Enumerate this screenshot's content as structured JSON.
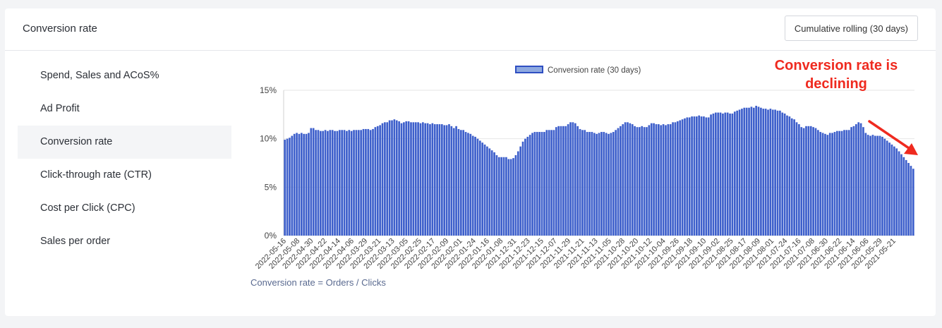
{
  "header": {
    "title": "Conversion rate",
    "rolling_button": "Cumulative rolling (30 days)"
  },
  "sidebar": {
    "items": [
      {
        "label": "Spend, Sales and ACoS%",
        "active": false
      },
      {
        "label": "Ad Profit",
        "active": false
      },
      {
        "label": "Conversion rate",
        "active": true
      },
      {
        "label": "Click-through rate (CTR)",
        "active": false
      },
      {
        "label": "Cost per Click (CPC)",
        "active": false
      },
      {
        "label": "Sales per order",
        "active": false
      }
    ]
  },
  "annotation": {
    "line1": "Conversion rate is",
    "line2": "declining",
    "color": "#ef2a1f"
  },
  "formula": "Conversion rate = Orders / Clicks",
  "chart_data": {
    "type": "bar",
    "series": [
      {
        "name": "Conversion rate (30 days)",
        "color": "#3d5fcb"
      }
    ],
    "y_ticks": [
      "0%",
      "5%",
      "10%",
      "15%"
    ],
    "ylim": [
      0,
      15
    ],
    "x_ticks": [
      "2022-05-16",
      "2022-05-08",
      "2022-04-30",
      "2022-04-22",
      "2022-04-14",
      "2022-04-06",
      "2022-03-29",
      "2022-03-21",
      "2022-03-13",
      "2022-03-05",
      "2022-02-25",
      "2022-02-17",
      "2022-02-09",
      "2022-02-01",
      "2022-01-24",
      "2022-01-16",
      "2022-01-08",
      "2021-12-31",
      "2021-12-23",
      "2021-12-15",
      "2021-12-07",
      "2021-11-29",
      "2021-11-21",
      "2021-11-13",
      "2021-11-05",
      "2021-10-28",
      "2021-10-20",
      "2021-10-12",
      "2021-10-04",
      "2021-09-26",
      "2021-09-18",
      "2021-09-10",
      "2021-09-02",
      "2021-08-25",
      "2021-08-17",
      "2021-08-09",
      "2021-08-01",
      "2021-07-24",
      "2021-07-16",
      "2021-07-08",
      "2021-06-30",
      "2021-06-22",
      "2021-06-14",
      "2021-06-06",
      "2021-05-29",
      "2021-05-21"
    ],
    "values": [
      9.9,
      10.0,
      10.1,
      10.3,
      10.5,
      10.6,
      10.5,
      10.6,
      10.5,
      10.5,
      10.6,
      11.1,
      11.1,
      10.9,
      10.9,
      10.8,
      10.8,
      10.9,
      10.8,
      10.9,
      10.9,
      10.8,
      10.8,
      10.9,
      10.9,
      10.9,
      10.8,
      10.9,
      10.8,
      10.9,
      10.9,
      10.9,
      10.9,
      11.0,
      11.0,
      11.0,
      10.9,
      11.0,
      11.2,
      11.3,
      11.4,
      11.6,
      11.7,
      11.7,
      11.9,
      11.9,
      12.0,
      11.9,
      11.8,
      11.6,
      11.7,
      11.8,
      11.8,
      11.7,
      11.7,
      11.7,
      11.7,
      11.6,
      11.7,
      11.6,
      11.6,
      11.5,
      11.6,
      11.5,
      11.5,
      11.5,
      11.5,
      11.4,
      11.4,
      11.5,
      11.3,
      11.1,
      11.3,
      11.0,
      10.9,
      10.9,
      10.7,
      10.6,
      10.5,
      10.3,
      10.2,
      10.0,
      9.8,
      9.6,
      9.4,
      9.2,
      9.0,
      8.8,
      8.6,
      8.3,
      8.1,
      8.1,
      8.1,
      8.1,
      7.9,
      7.9,
      8.0,
      8.3,
      8.7,
      9.2,
      9.7,
      10.0,
      10.2,
      10.4,
      10.6,
      10.7,
      10.7,
      10.7,
      10.7,
      10.7,
      10.9,
      10.9,
      10.9,
      10.9,
      11.2,
      11.3,
      11.3,
      11.3,
      11.3,
      11.5,
      11.7,
      11.7,
      11.6,
      11.3,
      11.0,
      10.9,
      10.9,
      10.7,
      10.7,
      10.7,
      10.6,
      10.5,
      10.6,
      10.7,
      10.7,
      10.6,
      10.5,
      10.6,
      10.7,
      10.9,
      11.1,
      11.3,
      11.5,
      11.7,
      11.7,
      11.6,
      11.5,
      11.3,
      11.2,
      11.2,
      11.3,
      11.2,
      11.2,
      11.4,
      11.6,
      11.6,
      11.5,
      11.5,
      11.4,
      11.5,
      11.4,
      11.5,
      11.5,
      11.7,
      11.7,
      11.8,
      11.9,
      12.0,
      12.1,
      12.2,
      12.2,
      12.3,
      12.3,
      12.3,
      12.4,
      12.3,
      12.3,
      12.2,
      12.2,
      12.5,
      12.6,
      12.7,
      12.7,
      12.7,
      12.6,
      12.7,
      12.7,
      12.6,
      12.6,
      12.8,
      12.9,
      13.0,
      13.1,
      13.2,
      13.2,
      13.2,
      13.3,
      13.2,
      13.4,
      13.3,
      13.2,
      13.1,
      13.1,
      13.0,
      13.1,
      13.0,
      13.0,
      12.9,
      12.9,
      12.7,
      12.6,
      12.4,
      12.3,
      12.1,
      12.0,
      11.7,
      11.5,
      11.2,
      11.1,
      11.3,
      11.3,
      11.3,
      11.2,
      11.1,
      10.9,
      10.7,
      10.6,
      10.5,
      10.4,
      10.6,
      10.6,
      10.7,
      10.8,
      10.8,
      10.8,
      10.9,
      10.9,
      10.9,
      11.2,
      11.3,
      11.5,
      11.7,
      11.6,
      11.2,
      10.6,
      10.4,
      10.3,
      10.4,
      10.3,
      10.3,
      10.3,
      10.2,
      10.0,
      9.8,
      9.6,
      9.4,
      9.2,
      9.0,
      8.7,
      8.4,
      8.1,
      7.8,
      7.5,
      7.2,
      6.9
    ]
  }
}
